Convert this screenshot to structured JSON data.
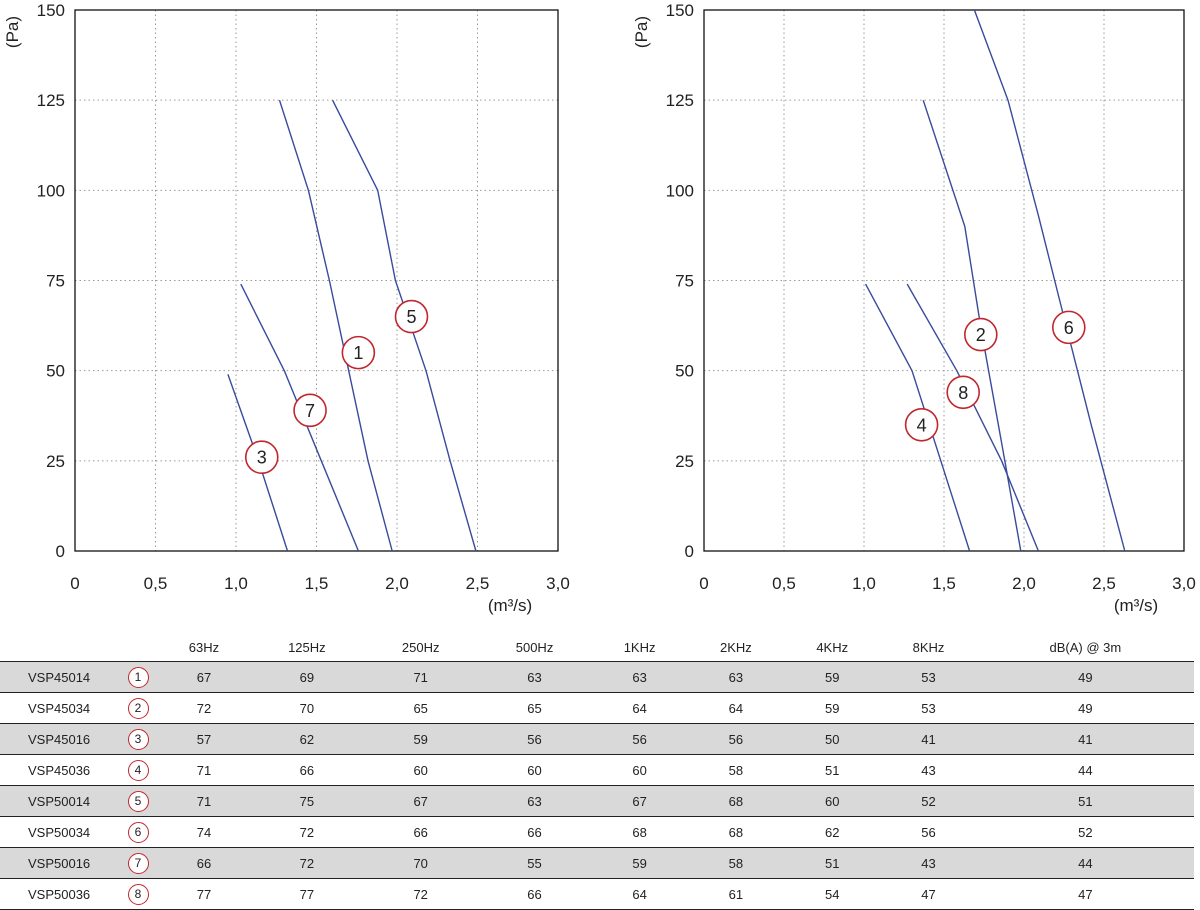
{
  "chart_data": [
    {
      "type": "line",
      "xlabel": "(m³/s)",
      "ylabel": "(Pa)",
      "xlim": [
        0,
        3.0
      ],
      "ylim": [
        0,
        150
      ],
      "xticks": [
        "0",
        "0,5",
        "1,0",
        "1,5",
        "2,0",
        "2,5",
        "3,0"
      ],
      "yticks": [
        "0",
        "25",
        "50",
        "75",
        "100",
        "125",
        "150"
      ],
      "grid": true,
      "series": [
        {
          "name": "1",
          "label_at": [
            1.76,
            55
          ],
          "points": [
            [
              1.27,
              125
            ],
            [
              1.45,
              100
            ],
            [
              1.58,
              75
            ],
            [
              1.7,
              50
            ],
            [
              1.82,
              25
            ],
            [
              1.97,
              0
            ]
          ]
        },
        {
          "name": "5",
          "label_at": [
            2.09,
            65
          ],
          "points": [
            [
              1.6,
              125
            ],
            [
              1.88,
              100
            ],
            [
              1.99,
              75
            ],
            [
              2.18,
              50
            ],
            [
              2.33,
              25
            ],
            [
              2.49,
              0
            ]
          ]
        },
        {
          "name": "7",
          "label_at": [
            1.46,
            39
          ],
          "points": [
            [
              1.03,
              74
            ],
            [
              1.3,
              50
            ],
            [
              1.53,
              25
            ],
            [
              1.76,
              0
            ]
          ]
        },
        {
          "name": "3",
          "label_at": [
            1.16,
            26
          ],
          "points": [
            [
              0.95,
              49
            ],
            [
              1.14,
              25
            ],
            [
              1.32,
              0
            ]
          ]
        }
      ]
    },
    {
      "type": "line",
      "xlabel": "(m³/s)",
      "ylabel": "(Pa)",
      "xlim": [
        0,
        3.0
      ],
      "ylim": [
        0,
        150
      ],
      "xticks": [
        "0",
        "0,5",
        "1,0",
        "1,5",
        "2,0",
        "2,5",
        "3,0"
      ],
      "yticks": [
        "0",
        "25",
        "50",
        "75",
        "100",
        "125",
        "150"
      ],
      "grid": true,
      "series": [
        {
          "name": "2",
          "label_at": [
            1.73,
            60
          ],
          "points": [
            [
              1.37,
              125
            ],
            [
              1.63,
              90
            ],
            [
              1.73,
              62
            ],
            [
              1.86,
              30
            ],
            [
              1.98,
              0
            ]
          ]
        },
        {
          "name": "6",
          "label_at": [
            2.28,
            62
          ],
          "points": [
            [
              1.69,
              150
            ],
            [
              1.9,
              125
            ],
            [
              2.09,
              93
            ],
            [
              2.22,
              70
            ],
            [
              2.42,
              35
            ],
            [
              2.63,
              0
            ]
          ]
        },
        {
          "name": "8",
          "label_at": [
            1.62,
            44
          ],
          "points": [
            [
              1.27,
              74
            ],
            [
              1.58,
              50
            ],
            [
              1.86,
              25
            ],
            [
              2.09,
              0
            ]
          ]
        },
        {
          "name": "4",
          "label_at": [
            1.36,
            35
          ],
          "points": [
            [
              1.01,
              74
            ],
            [
              1.3,
              50
            ],
            [
              1.48,
              25
            ],
            [
              1.66,
              0
            ]
          ]
        }
      ]
    }
  ],
  "table": {
    "headers": [
      "",
      "",
      "63Hz",
      "125Hz",
      "250Hz",
      "500Hz",
      "1KHz",
      "2KHz",
      "4KHz",
      "8KHz",
      "dB(A) @ 3m"
    ],
    "rows": [
      {
        "model": "VSP45014",
        "n": "1",
        "values": [
          "67",
          "69",
          "71",
          "63",
          "63",
          "63",
          "59",
          "53",
          "49"
        ]
      },
      {
        "model": "VSP45034",
        "n": "2",
        "values": [
          "72",
          "70",
          "65",
          "65",
          "64",
          "64",
          "59",
          "53",
          "49"
        ]
      },
      {
        "model": "VSP45016",
        "n": "3",
        "values": [
          "57",
          "62",
          "59",
          "56",
          "56",
          "56",
          "50",
          "41",
          "41"
        ]
      },
      {
        "model": "VSP45036",
        "n": "4",
        "values": [
          "71",
          "66",
          "60",
          "60",
          "60",
          "58",
          "51",
          "43",
          "44"
        ]
      },
      {
        "model": "VSP50014",
        "n": "5",
        "values": [
          "71",
          "75",
          "67",
          "63",
          "67",
          "68",
          "60",
          "52",
          "51"
        ]
      },
      {
        "model": "VSP50034",
        "n": "6",
        "values": [
          "74",
          "72",
          "66",
          "66",
          "68",
          "68",
          "62",
          "56",
          "52"
        ]
      },
      {
        "model": "VSP50016",
        "n": "7",
        "values": [
          "66",
          "72",
          "70",
          "55",
          "59",
          "58",
          "51",
          "43",
          "44"
        ]
      },
      {
        "model": "VSP50036",
        "n": "8",
        "values": [
          "77",
          "77",
          "72",
          "66",
          "64",
          "61",
          "54",
          "47",
          "47"
        ]
      }
    ]
  },
  "colors": {
    "curve": "#3a4a9c",
    "marker": "#c0272d",
    "shade": "#d9d9d9",
    "grid": "#9a9a9a"
  }
}
